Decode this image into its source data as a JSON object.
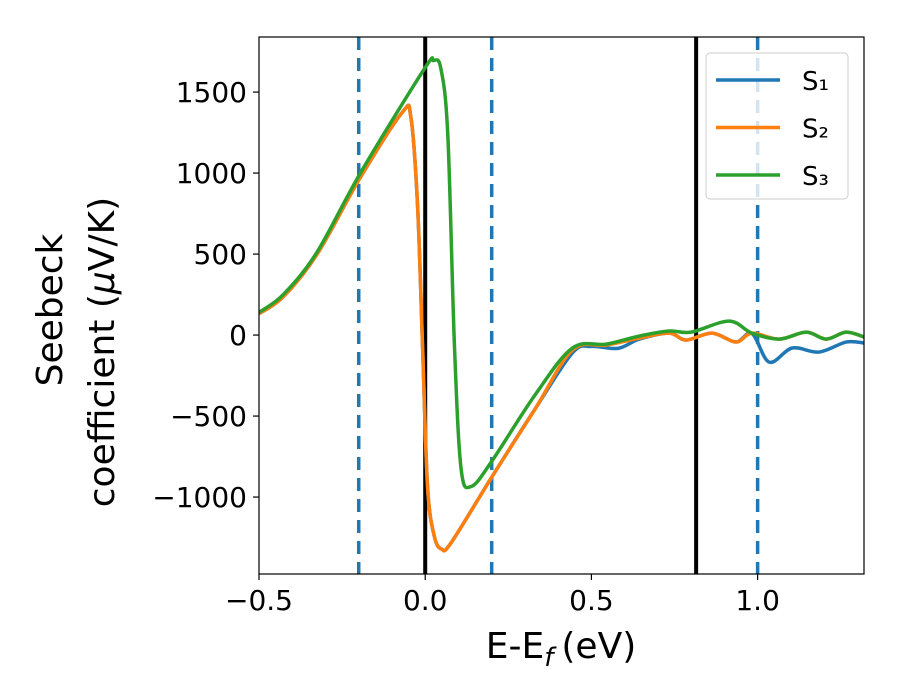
{
  "chart_data": {
    "type": "line",
    "title": "",
    "xlabel_main": "E-E",
    "xlabel_sub": "f",
    "xlabel_unit": "(eV)",
    "ylabel_line1": "Seebeck",
    "ylabel_line2_pre": "coefficient  (",
    "ylabel_line2_mu": "μ",
    "ylabel_line2_post": "V/K)",
    "xlim": [
      -0.5,
      1.32
    ],
    "ylim": [
      -1475,
      1840
    ],
    "xticks": [
      -0.5,
      0.0,
      0.5,
      1.0
    ],
    "xtick_labels": [
      "−0.5",
      "0.0",
      "0.5",
      "1.0"
    ],
    "yticks": [
      -1000,
      -500,
      0,
      500,
      1000,
      1500
    ],
    "ytick_labels": [
      "−1000",
      "−500",
      "0",
      "500",
      "1000",
      "1500"
    ],
    "grid": false,
    "legend_position": "top-right",
    "vlines": [
      {
        "x": -0.2,
        "style": "dashed",
        "color": "#1f77b4"
      },
      {
        "x": 0.2,
        "style": "dashed",
        "color": "#1f77b4"
      },
      {
        "x": 1.0,
        "style": "dashed",
        "color": "#1f77b4"
      },
      {
        "x": 0.0,
        "style": "solid",
        "color": "#000000"
      },
      {
        "x": 0.815,
        "style": "solid",
        "color": "#000000"
      }
    ],
    "series": [
      {
        "name": "S₁",
        "color": "#1f77b4",
        "points": [
          [
            -0.5,
            132
          ],
          [
            -0.427,
            236
          ],
          [
            -0.326,
            497
          ],
          [
            -0.195,
            974
          ],
          [
            -0.069,
            1375
          ],
          [
            -0.043,
            1343
          ],
          [
            -0.023,
            800
          ],
          [
            -0.008,
            -67
          ],
          [
            0.007,
            -935
          ],
          [
            0.027,
            -1239
          ],
          [
            0.049,
            -1321
          ],
          [
            0.078,
            -1282
          ],
          [
            0.199,
            -881
          ],
          [
            0.33,
            -458
          ],
          [
            0.443,
            -110
          ],
          [
            0.5,
            -70
          ],
          [
            0.58,
            -82
          ],
          [
            0.644,
            -25
          ],
          [
            0.734,
            12
          ],
          [
            0.785,
            -31
          ],
          [
            0.863,
            12
          ],
          [
            0.935,
            -43
          ],
          [
            0.983,
            10
          ],
          [
            1.035,
            -167
          ],
          [
            1.104,
            -80
          ],
          [
            1.185,
            -105
          ],
          [
            1.266,
            -43
          ],
          [
            1.32,
            -49
          ]
        ]
      },
      {
        "name": "S₂",
        "color": "#ff7f0e",
        "points": [
          [
            -0.5,
            132
          ],
          [
            -0.427,
            236
          ],
          [
            -0.326,
            497
          ],
          [
            -0.195,
            974
          ],
          [
            -0.069,
            1375
          ],
          [
            -0.043,
            1343
          ],
          [
            -0.023,
            800
          ],
          [
            -0.008,
            -67
          ],
          [
            0.007,
            -935
          ],
          [
            0.027,
            -1239
          ],
          [
            0.049,
            -1321
          ],
          [
            0.078,
            -1282
          ],
          [
            0.199,
            -881
          ],
          [
            0.33,
            -458
          ],
          [
            0.443,
            -93
          ],
          [
            0.545,
            -62
          ],
          [
            0.644,
            -19
          ],
          [
            0.734,
            12
          ],
          [
            0.785,
            -31
          ],
          [
            0.863,
            12
          ],
          [
            0.935,
            -43
          ],
          [
            0.983,
            12
          ],
          [
            1.065,
            -25
          ],
          [
            1.146,
            18
          ],
          [
            1.206,
            -25
          ],
          [
            1.266,
            18
          ],
          [
            1.32,
            -12
          ]
        ]
      },
      {
        "name": "S₃",
        "color": "#2ca02c",
        "points": [
          [
            -0.5,
            140
          ],
          [
            -0.427,
            250
          ],
          [
            -0.326,
            510
          ],
          [
            -0.195,
            1000
          ],
          [
            -0.003,
            1642
          ],
          [
            0.025,
            1694
          ],
          [
            0.047,
            1646
          ],
          [
            0.068,
            1234
          ],
          [
            0.088,
            -67
          ],
          [
            0.108,
            -826
          ],
          [
            0.138,
            -935
          ],
          [
            0.199,
            -783
          ],
          [
            0.33,
            -371
          ],
          [
            0.443,
            -80
          ],
          [
            0.545,
            -56
          ],
          [
            0.644,
            -6
          ],
          [
            0.734,
            25
          ],
          [
            0.8,
            18
          ],
          [
            0.914,
            86
          ],
          [
            0.983,
            12
          ],
          [
            1.065,
            -25
          ],
          [
            1.146,
            18
          ],
          [
            1.206,
            -25
          ],
          [
            1.266,
            18
          ],
          [
            1.32,
            -12
          ]
        ]
      }
    ]
  }
}
